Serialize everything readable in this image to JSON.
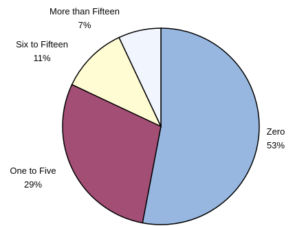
{
  "chart_data": {
    "type": "pie",
    "categories": [
      "Zero",
      "One to Five",
      "Six to Fifteen",
      "More than Fifteen"
    ],
    "values": [
      53,
      29,
      11,
      7
    ],
    "value_labels": [
      "53%",
      "29%",
      "11%",
      "7%"
    ],
    "colors": [
      "#97b7e0",
      "#a34e75",
      "#fffbd3",
      "#f0f5fe"
    ],
    "start": "12 o'clock",
    "direction": "clockwise",
    "legend": "none"
  }
}
